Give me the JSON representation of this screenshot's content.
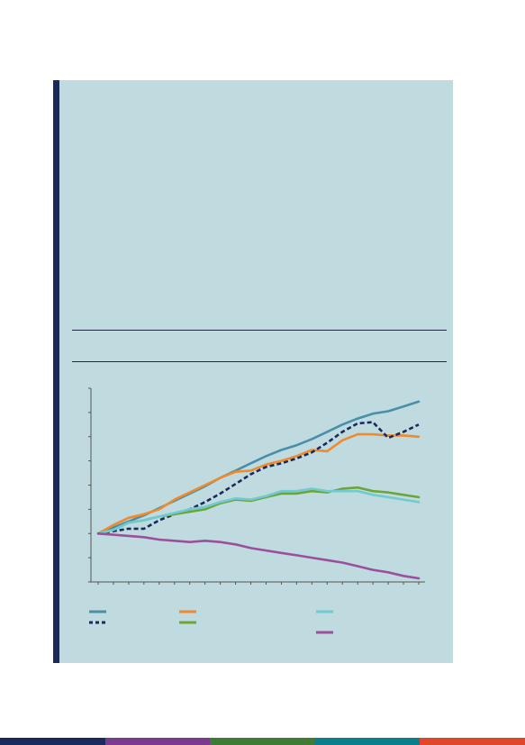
{
  "chart_data": {
    "type": "line",
    "title": "",
    "xlabel": "",
    "ylabel": "",
    "x": [
      0,
      1,
      2,
      3,
      4,
      5,
      6,
      7,
      8,
      9,
      10,
      11,
      12,
      13,
      14,
      15,
      16,
      17,
      18,
      19,
      20,
      21
    ],
    "ylim": [
      -2,
      6
    ],
    "yticks": [
      -2,
      -1,
      0,
      1,
      2,
      3,
      4,
      5,
      6
    ],
    "grid": false,
    "legend_position": "bottom",
    "series": [
      {
        "name": "",
        "color": "#4a8fa8",
        "style": "solid",
        "values": [
          0,
          0.25,
          0.5,
          0.75,
          1.05,
          1.35,
          1.65,
          1.95,
          2.3,
          2.6,
          2.9,
          3.2,
          3.45,
          3.65,
          3.9,
          4.2,
          4.5,
          4.75,
          4.95,
          5.05,
          5.25,
          5.45
        ]
      },
      {
        "name": "",
        "color": "#f08a2c",
        "style": "solid",
        "values": [
          0,
          0.35,
          0.65,
          0.8,
          1.0,
          1.4,
          1.7,
          2.0,
          2.3,
          2.55,
          2.6,
          2.85,
          3.0,
          3.2,
          3.45,
          3.4,
          3.85,
          4.1,
          4.1,
          4.05,
          4.05,
          4.0
        ]
      },
      {
        "name": "",
        "color": "#1b2a5c",
        "style": "dashed",
        "values": [
          0,
          0.1,
          0.2,
          0.2,
          0.55,
          0.8,
          1.0,
          1.3,
          1.65,
          2.05,
          2.45,
          2.75,
          2.9,
          3.1,
          3.35,
          3.75,
          4.2,
          4.55,
          4.6,
          3.95,
          4.2,
          4.5
        ]
      },
      {
        "name": "",
        "color": "#6ea538",
        "style": "solid",
        "values": [
          0,
          0.15,
          0.45,
          0.55,
          0.7,
          0.8,
          0.9,
          1.0,
          1.25,
          1.4,
          1.35,
          1.5,
          1.65,
          1.65,
          1.75,
          1.7,
          1.85,
          1.9,
          1.75,
          1.7,
          1.6,
          1.5
        ]
      },
      {
        "name": "",
        "color": "#6fcad1",
        "style": "solid",
        "values": [
          0,
          0.15,
          0.45,
          0.55,
          0.7,
          0.85,
          1.0,
          1.1,
          1.3,
          1.45,
          1.4,
          1.55,
          1.75,
          1.75,
          1.85,
          1.75,
          1.75,
          1.75,
          1.6,
          1.5,
          1.4,
          1.3
        ]
      },
      {
        "name": "",
        "color": "#9b4f9c",
        "style": "solid",
        "values": [
          0,
          -0.05,
          -0.1,
          -0.15,
          -0.25,
          -0.3,
          -0.35,
          -0.3,
          -0.35,
          -0.45,
          -0.6,
          -0.7,
          -0.8,
          -0.9,
          -1.0,
          -1.1,
          -1.2,
          -1.35,
          -1.5,
          -1.6,
          -1.75,
          -1.85
        ]
      }
    ]
  },
  "footer": {
    "colors": [
      "#1b2a5c",
      "#7a3b8f",
      "#3f7a36",
      "#0a7f8c",
      "#e2462a"
    ]
  }
}
